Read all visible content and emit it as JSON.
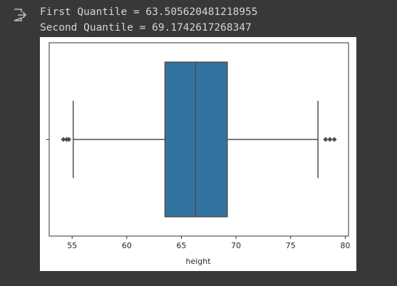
{
  "output_lines": [
    "First Quantile = 63.505620481218955",
    "Second Quantile = 69.1742617268347"
  ],
  "chart_data": {
    "type": "box",
    "orientation": "horizontal",
    "xlabel": "height",
    "xlim": [
      52.9,
      80.3
    ],
    "xticks": [
      55,
      60,
      65,
      70,
      75,
      80
    ],
    "color": "#3274a1",
    "line_color": "#4d4d4d",
    "boxes": [
      {
        "whislo": 55.1,
        "q1": 63.5,
        "med": 66.3,
        "q3": 69.2,
        "whishi": 77.5,
        "fliers": [
          54.2,
          54.5,
          54.7,
          78.2,
          78.6,
          79.0
        ]
      }
    ]
  }
}
